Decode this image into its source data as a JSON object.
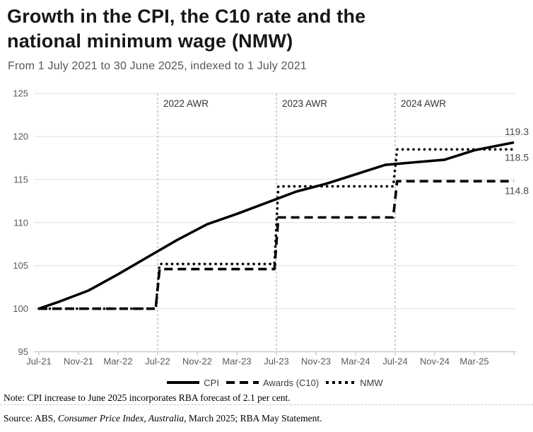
{
  "header": {
    "title_line1": "Growth in the CPI, the C10 rate and the",
    "title_line2": "national minimum wage (NMW)",
    "subtitle": "From 1 July 2021 to 30 June 2025, indexed to 1 July 2021"
  },
  "chart_data": {
    "type": "line",
    "title": "Growth in the CPI, the C10 rate and the national minimum wage (NMW)",
    "subtitle": "From 1 July 2021 to 30 June 2025, indexed to 1 July 2021",
    "x_unit": "months since Jul-2021",
    "ylim": [
      95,
      125
    ],
    "yticks": [
      95,
      100,
      105,
      110,
      115,
      120,
      125
    ],
    "grid": "horizontal",
    "legend_position": "bottom",
    "xticks": [
      {
        "month": 0,
        "label": "Jul-21"
      },
      {
        "month": 4,
        "label": "Nov-21"
      },
      {
        "month": 8,
        "label": "Mar-22"
      },
      {
        "month": 12,
        "label": "Jul-22"
      },
      {
        "month": 16,
        "label": "Nov-22"
      },
      {
        "month": 20,
        "label": "Mar-23"
      },
      {
        "month": 24,
        "label": "Jul-23"
      },
      {
        "month": 28,
        "label": "Nov-23"
      },
      {
        "month": 32,
        "label": "Mar-24"
      },
      {
        "month": 36,
        "label": "Jul-24"
      },
      {
        "month": 40,
        "label": "Nov-24"
      },
      {
        "month": 44,
        "label": "Mar-25"
      },
      {
        "month": 48,
        "label": ""
      }
    ],
    "annotations": [
      {
        "label": "2022 AWR",
        "month": 12
      },
      {
        "label": "2023 AWR",
        "month": 24
      },
      {
        "label": "2024 AWR",
        "month": 36
      }
    ],
    "series": [
      {
        "name": "CPI",
        "style": "solid",
        "end_label": "119.3",
        "points": [
          [
            0,
            100
          ],
          [
            2,
            100.8
          ],
          [
            5,
            102.1
          ],
          [
            8,
            104.0
          ],
          [
            11,
            106.0
          ],
          [
            14,
            108.0
          ],
          [
            17,
            109.8
          ],
          [
            20,
            111.0
          ],
          [
            23,
            112.3
          ],
          [
            26,
            113.6
          ],
          [
            29,
            114.5
          ],
          [
            32,
            115.6
          ],
          [
            35,
            116.7
          ],
          [
            38,
            117.0
          ],
          [
            41,
            117.3
          ],
          [
            44,
            118.4
          ],
          [
            48,
            119.3
          ]
        ]
      },
      {
        "name": "Awards (C10)",
        "style": "dashed",
        "end_label": "114.8",
        "points": [
          [
            0,
            100
          ],
          [
            11.8,
            100
          ],
          [
            12.2,
            104.6
          ],
          [
            23.8,
            104.6
          ],
          [
            24.2,
            110.6
          ],
          [
            35.8,
            110.6
          ],
          [
            36.2,
            114.8
          ],
          [
            48,
            114.8
          ]
        ]
      },
      {
        "name": "NMW",
        "style": "dotted",
        "end_label": "118.5",
        "points": [
          [
            0,
            100
          ],
          [
            11.8,
            100
          ],
          [
            12.2,
            105.2
          ],
          [
            23.8,
            105.2
          ],
          [
            24.2,
            114.2
          ],
          [
            35.8,
            114.2
          ],
          [
            36.2,
            118.5
          ],
          [
            48,
            118.5
          ]
        ]
      }
    ],
    "colors": {
      "line": "#000000",
      "grid": "#e0e0e0",
      "axis": "#c4c4c4",
      "tick_text": "#595959",
      "annotation_line": "#9c9c9c",
      "annotation_text": "#333333",
      "end_label_text": "#4a4a4a"
    }
  },
  "footer": {
    "note": "Note: CPI increase to June 2025 incorporates RBA forecast of 2.1 per cent.",
    "source_prefix": "Source: ABS, ",
    "source_italic": "Consumer Price Index, Australia",
    "source_suffix": ", March 2025; RBA May Statement."
  }
}
